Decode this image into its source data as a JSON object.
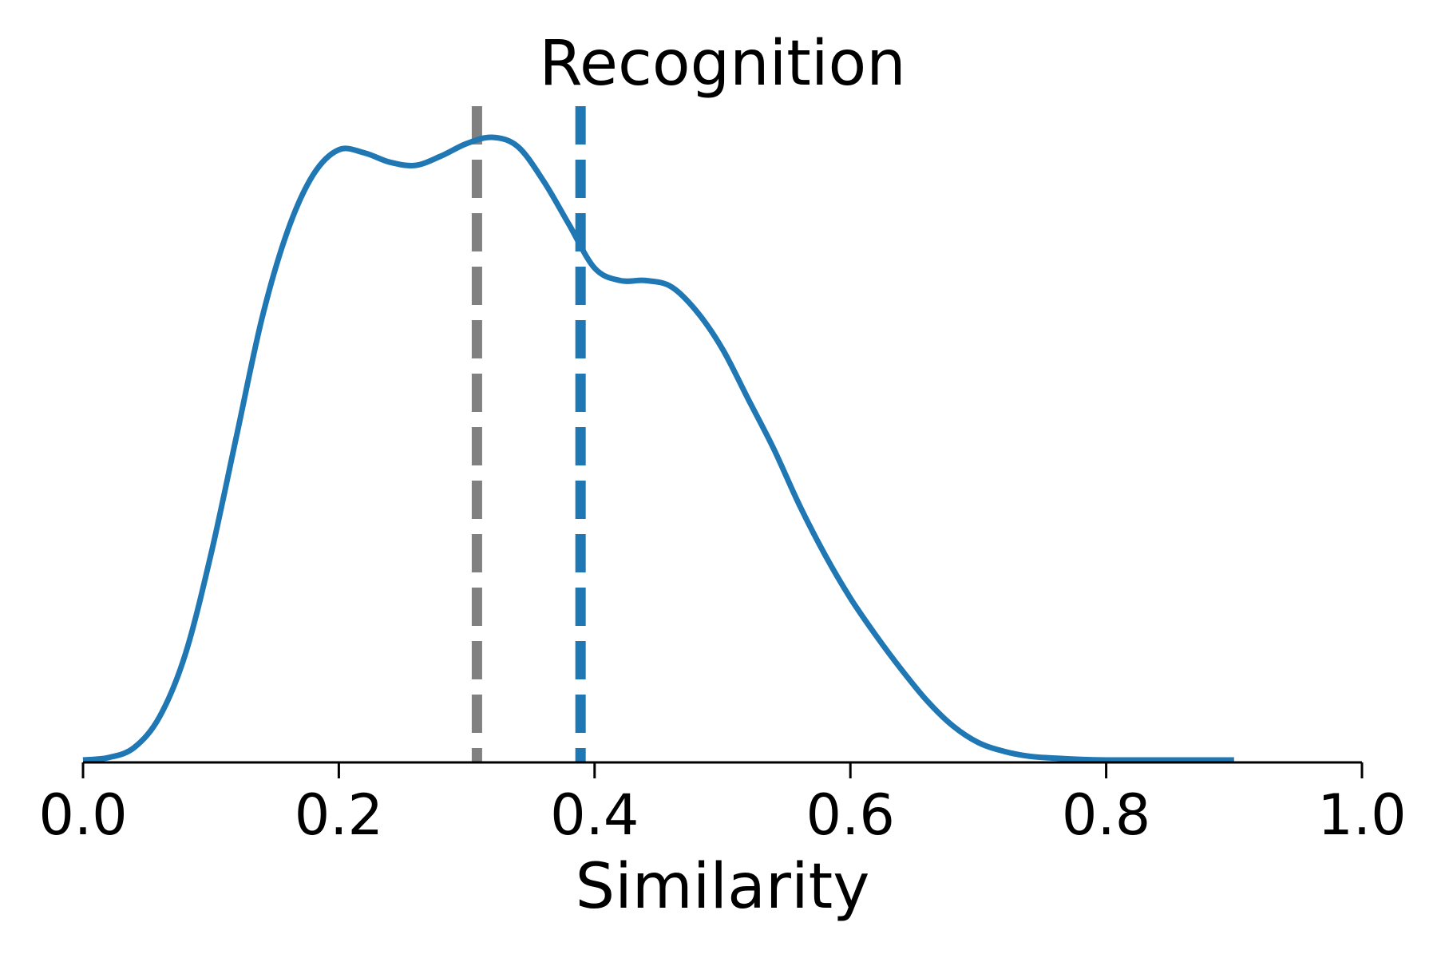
{
  "chart_data": {
    "type": "line",
    "title": "Recognition",
    "xlabel": "Similarity",
    "ylabel": "",
    "xlim": [
      0.0,
      1.0
    ],
    "ylim": [
      0.0,
      1.0
    ],
    "y_axis_visible": false,
    "grid": false,
    "legend": "none",
    "x_ticks": [
      0.0,
      0.2,
      0.4,
      0.6,
      0.8,
      1.0
    ],
    "x_tick_labels": [
      "0.0",
      "0.2",
      "0.4",
      "0.6",
      "0.8",
      "1.0"
    ],
    "series": [
      {
        "color": "#1f77b4",
        "style": "solid",
        "x": [
          0.0,
          0.02,
          0.04,
          0.06,
          0.08,
          0.1,
          0.12,
          0.14,
          0.16,
          0.18,
          0.2,
          0.22,
          0.24,
          0.26,
          0.28,
          0.3,
          0.32,
          0.34,
          0.36,
          0.38,
          0.4,
          0.42,
          0.44,
          0.46,
          0.48,
          0.5,
          0.52,
          0.54,
          0.56,
          0.58,
          0.6,
          0.62,
          0.64,
          0.66,
          0.68,
          0.7,
          0.72,
          0.74,
          0.76,
          0.78,
          0.8,
          0.82,
          0.84,
          0.86,
          0.88,
          0.9
        ],
        "y": [
          0.0,
          0.004,
          0.02,
          0.07,
          0.17,
          0.33,
          0.52,
          0.71,
          0.85,
          0.94,
          0.98,
          0.975,
          0.96,
          0.955,
          0.97,
          0.99,
          1.0,
          0.985,
          0.93,
          0.86,
          0.79,
          0.77,
          0.77,
          0.76,
          0.72,
          0.66,
          0.58,
          0.5,
          0.41,
          0.33,
          0.26,
          0.2,
          0.145,
          0.095,
          0.055,
          0.028,
          0.014,
          0.006,
          0.003,
          0.001,
          0.0,
          0.0,
          0.0,
          0.0,
          0.0,
          0.0
        ]
      }
    ],
    "vlines": [
      {
        "x": 0.308,
        "color": "#808080",
        "style": "dashed"
      },
      {
        "x": 0.389,
        "color": "#1f77b4",
        "style": "dashed"
      }
    ]
  }
}
